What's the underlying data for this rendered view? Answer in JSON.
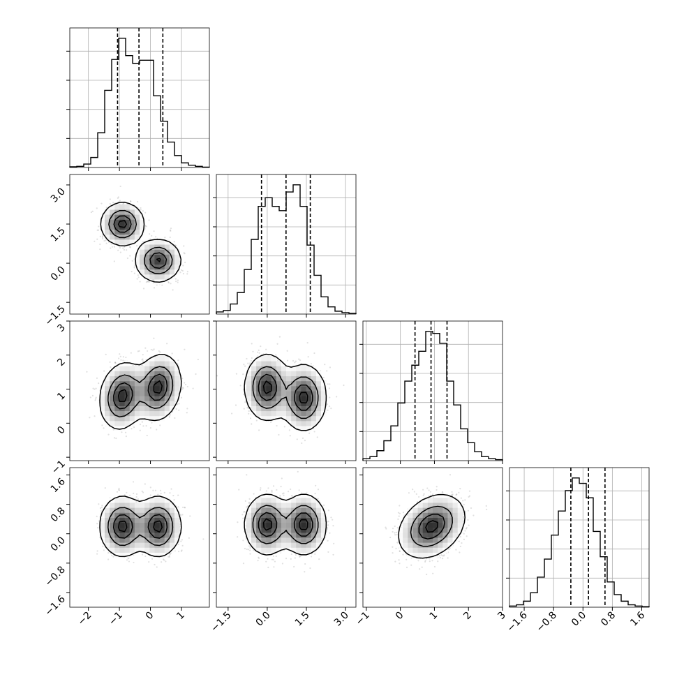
{
  "chart_data": {
    "type": "corner",
    "background_color": "#ffffff",
    "ink_color": "#000000",
    "grid": true,
    "parameters": [
      {
        "range": [
          -2.6,
          1.9
        ],
        "ticks": [
          -2,
          -1,
          0,
          1
        ],
        "tick_labels": [
          "−2",
          "−1",
          "0",
          "1"
        ],
        "quantiles": [
          -1.06,
          -0.37,
          0.4
        ]
      },
      {
        "range": [
          -1.95,
          3.4
        ],
        "ticks": [
          -1.5,
          0.0,
          1.5,
          3.0
        ],
        "tick_labels": [
          "−1.5",
          "0.0",
          "1.5",
          "3.0"
        ],
        "quantiles": [
          -0.22,
          0.72,
          1.65
        ]
      },
      {
        "range": [
          -1.1,
          3.0
        ],
        "ticks": [
          -1,
          0,
          1,
          2,
          3
        ],
        "tick_labels": [
          "−1",
          "0",
          "1",
          "2",
          "3"
        ],
        "quantiles": [
          0.43,
          0.9,
          1.37
        ]
      },
      {
        "range": [
          -2.0,
          1.8
        ],
        "ticks": [
          -1.6,
          -0.8,
          0.0,
          0.8,
          1.6
        ],
        "tick_labels": [
          "−1.6",
          "−0.8",
          "0.0",
          "0.8",
          "1.6"
        ],
        "quantiles": [
          -0.33,
          0.15,
          0.6
        ]
      }
    ],
    "histograms": [
      [
        2,
        3,
        9,
        26,
        90,
        200,
        280,
        335,
        290,
        270,
        278,
        278,
        186,
        120,
        66,
        31,
        12,
        6,
        3,
        1
      ],
      [
        3,
        5,
        14,
        30,
        62,
        104,
        150,
        162,
        150,
        144,
        170,
        180,
        150,
        96,
        54,
        24,
        10,
        4,
        2,
        1
      ],
      [
        2,
        4,
        10,
        20,
        35,
        58,
        80,
        96,
        110,
        130,
        128,
        118,
        80,
        56,
        32,
        18,
        9,
        4,
        2,
        1
      ],
      [
        2,
        4,
        10,
        24,
        50,
        80,
        120,
        160,
        194,
        215,
        206,
        182,
        126,
        84,
        42,
        21,
        10,
        4,
        2,
        1
      ]
    ],
    "pair_components": [
      {
        "row": 1,
        "col": 0,
        "components": [
          {
            "mx": -0.9,
            "my": 1.5,
            "sx": 0.32,
            "sy": 0.38,
            "rho": 0.0,
            "w": 0.5
          },
          {
            "mx": 0.25,
            "my": 0.1,
            "sx": 0.34,
            "sy": 0.38,
            "rho": 0.0,
            "w": 0.5
          }
        ]
      },
      {
        "row": 2,
        "col": 0,
        "components": [
          {
            "mx": -0.9,
            "my": 0.8,
            "sx": 0.34,
            "sy": 0.45,
            "rho": 0.15,
            "w": 0.5
          },
          {
            "mx": 0.25,
            "my": 1.05,
            "sx": 0.34,
            "sy": 0.45,
            "rho": 0.15,
            "w": 0.5
          }
        ]
      },
      {
        "row": 2,
        "col": 1,
        "components": [
          {
            "mx": 0.0,
            "my": 1.05,
            "sx": 0.4,
            "sy": 0.45,
            "rho": 0.0,
            "w": 0.5
          },
          {
            "mx": 1.4,
            "my": 0.75,
            "sx": 0.4,
            "sy": 0.45,
            "rho": 0.0,
            "w": 0.5
          }
        ]
      },
      {
        "row": 3,
        "col": 0,
        "components": [
          {
            "mx": -0.9,
            "my": 0.2,
            "sx": 0.34,
            "sy": 0.38,
            "rho": 0.0,
            "w": 0.5
          },
          {
            "mx": 0.25,
            "my": 0.2,
            "sx": 0.34,
            "sy": 0.38,
            "rho": 0.0,
            "w": 0.5
          }
        ]
      },
      {
        "row": 3,
        "col": 1,
        "components": [
          {
            "mx": 0.0,
            "my": 0.25,
            "sx": 0.4,
            "sy": 0.38,
            "rho": 0.0,
            "w": 0.5
          },
          {
            "mx": 1.4,
            "my": 0.25,
            "sx": 0.4,
            "sy": 0.38,
            "rho": 0.0,
            "w": 0.5
          }
        ]
      },
      {
        "row": 3,
        "col": 2,
        "components": [
          {
            "mx": 0.92,
            "my": 0.2,
            "sx": 0.45,
            "sy": 0.4,
            "rho": 0.3,
            "w": 1.0
          }
        ]
      }
    ],
    "contour_levels": [
      0.1,
      0.4,
      0.7,
      0.92
    ]
  }
}
